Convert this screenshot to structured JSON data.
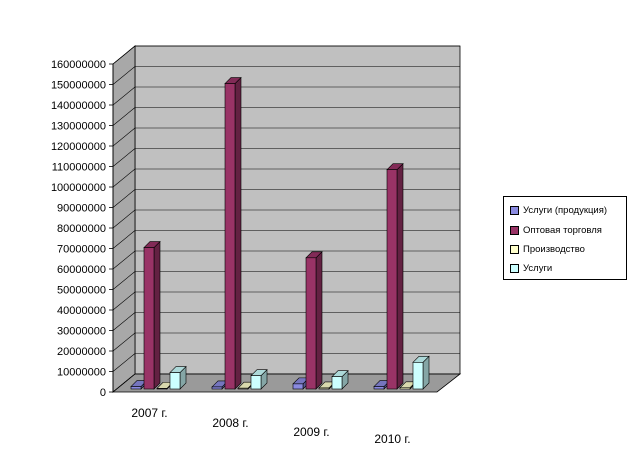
{
  "chart_data": {
    "type": "bar",
    "style": "3d-clustered-column",
    "categories": [
      "2007 г.",
      "2008 г.",
      "2009 г.",
      "2010 г."
    ],
    "series": [
      {
        "name": "Услуги (продукция)",
        "color": "#8a8ae0",
        "values": [
          1200000,
          1000000,
          2500000,
          1200000
        ]
      },
      {
        "name": "Оптовая торговля",
        "color": "#993366",
        "values": [
          69000000,
          149000000,
          64000000,
          107000000
        ]
      },
      {
        "name": "Производство",
        "color": "#ffffcc",
        "values": [
          300000,
          400000,
          500000,
          600000
        ]
      },
      {
        "name": "Услуги",
        "color": "#ccffff",
        "values": [
          8000000,
          6500000,
          6000000,
          13000000
        ]
      }
    ],
    "yticks": [
      "0",
      "10000000",
      "20000000",
      "30000000",
      "40000000",
      "50000000",
      "60000000",
      "70000000",
      "80000000",
      "90000000",
      "100000000",
      "110000000",
      "120000000",
      "130000000",
      "140000000",
      "150000000",
      "160000000"
    ],
    "ylim": [
      0,
      160000000
    ],
    "grid": true,
    "legend_position": "right",
    "wall_color": "#c0c0c0"
  }
}
